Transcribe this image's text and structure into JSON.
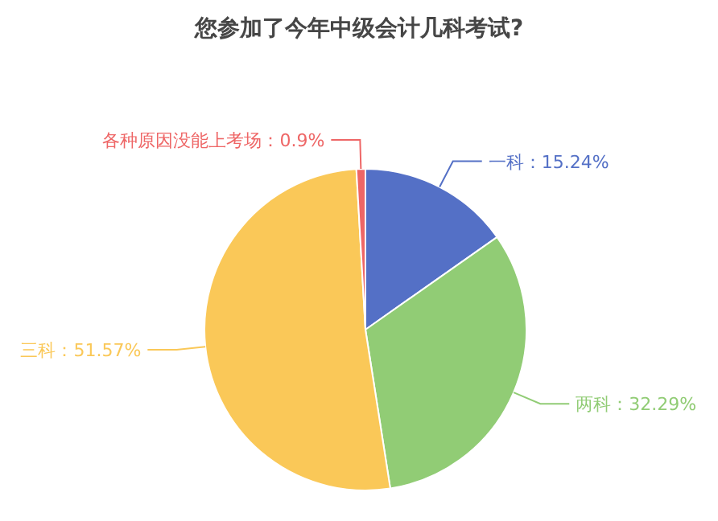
{
  "chart_data": {
    "type": "pie",
    "title": "您参加了今年中级会计几科考试?",
    "categories": [
      "一科",
      "两科",
      "三科",
      "各种原因没能上考场"
    ],
    "values": [
      15.24,
      32.29,
      51.57,
      0.9
    ],
    "value_labels": [
      "：15.24%",
      "：32.29%",
      "：51.57%",
      "：0.9%"
    ],
    "colors": [
      "#5470c6",
      "#91cc75",
      "#fac858",
      "#ee6666"
    ]
  }
}
